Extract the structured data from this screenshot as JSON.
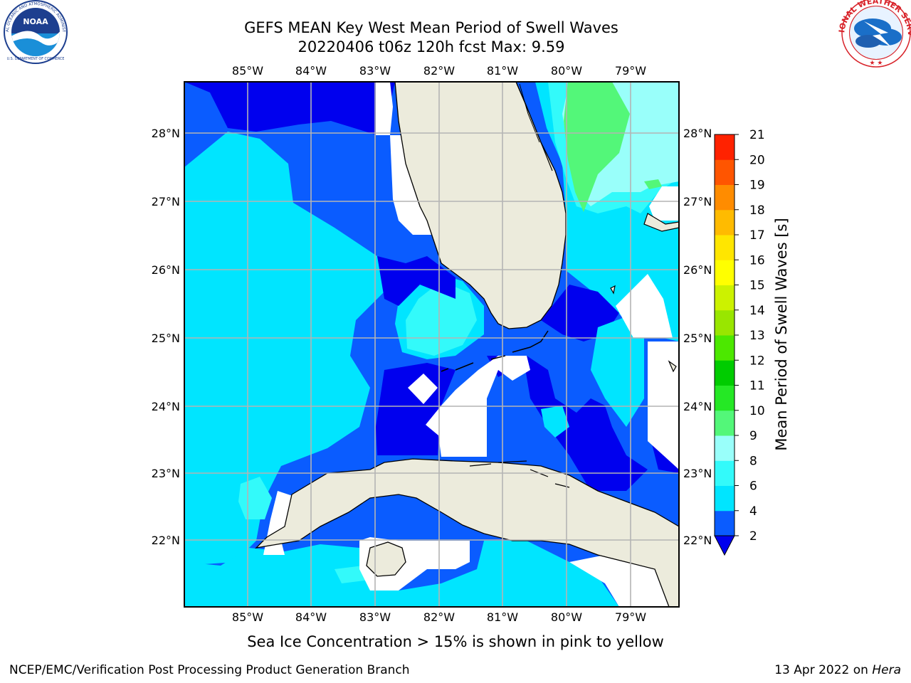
{
  "header": {
    "title_line_1": "GEFS MEAN Key West Mean Period of Swell Waves",
    "title_line_2": "20220406 t06z 120h fcst   Max: 9.59"
  },
  "logos": {
    "left": {
      "name": "NOAA",
      "ring_text": "NATIONAL OCEANIC AND ATMOSPHERIC ADMINISTRATION",
      "bottom_text": "U.S. DEPARTMENT OF COMMERCE",
      "colors": {
        "primary": "#1d3f8f",
        "light": "#1a8fd8"
      }
    },
    "right": {
      "name": "NATIONAL WEATHER SERVICE",
      "colors": {
        "ring": "#d8232a",
        "fill": "#1a6fc8"
      }
    }
  },
  "map": {
    "lon_ticks": [
      "85°W",
      "84°W",
      "83°W",
      "82°W",
      "81°W",
      "80°W",
      "79°W"
    ],
    "lat_ticks": [
      "28°N",
      "27°N",
      "26°N",
      "25°N",
      "24°N",
      "23°N",
      "22°N"
    ],
    "lon_range": [
      -86,
      -78.3
    ],
    "lat_range": [
      21.05,
      28.78
    ],
    "land_color": "#ecebdc",
    "grid_color": "#b4b4b4"
  },
  "colorbar": {
    "label": "Mean Period of Swell Waves [s]",
    "ticks": [
      "21",
      "20",
      "19",
      "18",
      "17",
      "16",
      "15",
      "14",
      "13",
      "12",
      "11",
      "10",
      "9",
      "8",
      "6",
      "4",
      "2"
    ],
    "levels": [
      2,
      4,
      6,
      8,
      9,
      10,
      11,
      12,
      13,
      14,
      15,
      16,
      17,
      18,
      19,
      20,
      21
    ],
    "colors": [
      "#0a5cff",
      "#00e5ff",
      "#33fafa",
      "#99fffa",
      "#53f779",
      "#25e825",
      "#00cc00",
      "#4ce800",
      "#99e600",
      "#ccf200",
      "#ffff00",
      "#ffe600",
      "#ffbb00",
      "#ff8c00",
      "#ff5500",
      "#ff2200"
    ],
    "under_color": "#0000ee"
  },
  "chart_data": {
    "type": "heatmap",
    "title": "GEFS MEAN Key West Mean Period of Swell Waves",
    "subtitle": "20220406 t06z 120h fcst   Max: 9.59",
    "variable": "Mean Period of Swell Waves [s]",
    "max": 9.59,
    "xlim": [
      -86,
      -78.3
    ],
    "ylim": [
      21.05,
      28.78
    ],
    "colorbar_range": [
      2,
      21
    ]
  },
  "notes": {
    "sea_ice": "Sea Ice Concentration > 15% is shown in pink to yellow"
  },
  "footer": {
    "left": "NCEP/EMC/Verification Post Processing Product Generation Branch",
    "right_date": "13 Apr 2022 on",
    "right_host": "Hera"
  }
}
